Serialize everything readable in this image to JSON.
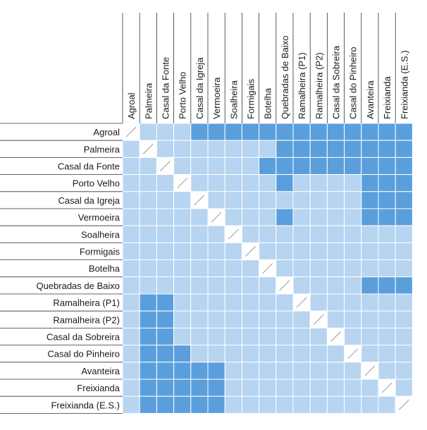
{
  "matrix": {
    "names": [
      "Agroal",
      "Palmeira",
      "Casal da Fonte",
      "Porto Velho",
      "Casal da Igreja",
      "Vermoeira",
      "Soalheira",
      "Formigais",
      "Botelha",
      "Quebradas de Baixo",
      "Ramalheira (P1)",
      "Ramalheira (P2)",
      "Casal da Sobreira",
      "Casal do Pinheiro",
      "Avanteira",
      "Freixianda",
      "Freixianda (E.S.)"
    ],
    "colors": {
      "low": "#b7d4f0",
      "high": "#5a9fdc",
      "diagonal": "#ffffff",
      "grid": "#ffffff",
      "divider": "#333333"
    },
    "high_pairs": [
      [
        0,
        4
      ],
      [
        0,
        5
      ],
      [
        0,
        6
      ],
      [
        0,
        7
      ],
      [
        0,
        8
      ],
      [
        0,
        9
      ],
      [
        0,
        10
      ],
      [
        0,
        11
      ],
      [
        0,
        12
      ],
      [
        0,
        13
      ],
      [
        0,
        14
      ],
      [
        0,
        15
      ],
      [
        0,
        16
      ],
      [
        1,
        9
      ],
      [
        1,
        10
      ],
      [
        1,
        11
      ],
      [
        1,
        12
      ],
      [
        1,
        13
      ],
      [
        1,
        14
      ],
      [
        1,
        15
      ],
      [
        1,
        16
      ],
      [
        2,
        8
      ],
      [
        2,
        9
      ],
      [
        2,
        10
      ],
      [
        2,
        11
      ],
      [
        2,
        12
      ],
      [
        2,
        13
      ],
      [
        2,
        14
      ],
      [
        2,
        15
      ],
      [
        2,
        16
      ],
      [
        3,
        9
      ],
      [
        3,
        14
      ],
      [
        3,
        15
      ],
      [
        3,
        16
      ],
      [
        4,
        14
      ],
      [
        4,
        15
      ],
      [
        4,
        16
      ],
      [
        5,
        9
      ],
      [
        5,
        14
      ],
      [
        5,
        15
      ],
      [
        5,
        16
      ],
      [
        9,
        14
      ],
      [
        9,
        15
      ],
      [
        9,
        16
      ],
      [
        10,
        1
      ],
      [
        10,
        2
      ],
      [
        11,
        1
      ],
      [
        11,
        2
      ],
      [
        12,
        1
      ],
      [
        12,
        2
      ],
      [
        13,
        1
      ],
      [
        13,
        2
      ],
      [
        13,
        3
      ],
      [
        14,
        1
      ],
      [
        14,
        2
      ],
      [
        14,
        3
      ],
      [
        14,
        4
      ],
      [
        14,
        5
      ],
      [
        15,
        1
      ],
      [
        15,
        2
      ],
      [
        15,
        3
      ],
      [
        15,
        4
      ],
      [
        15,
        5
      ],
      [
        16,
        1
      ],
      [
        16,
        2
      ],
      [
        16,
        3
      ],
      [
        16,
        4
      ],
      [
        16,
        5
      ]
    ]
  }
}
